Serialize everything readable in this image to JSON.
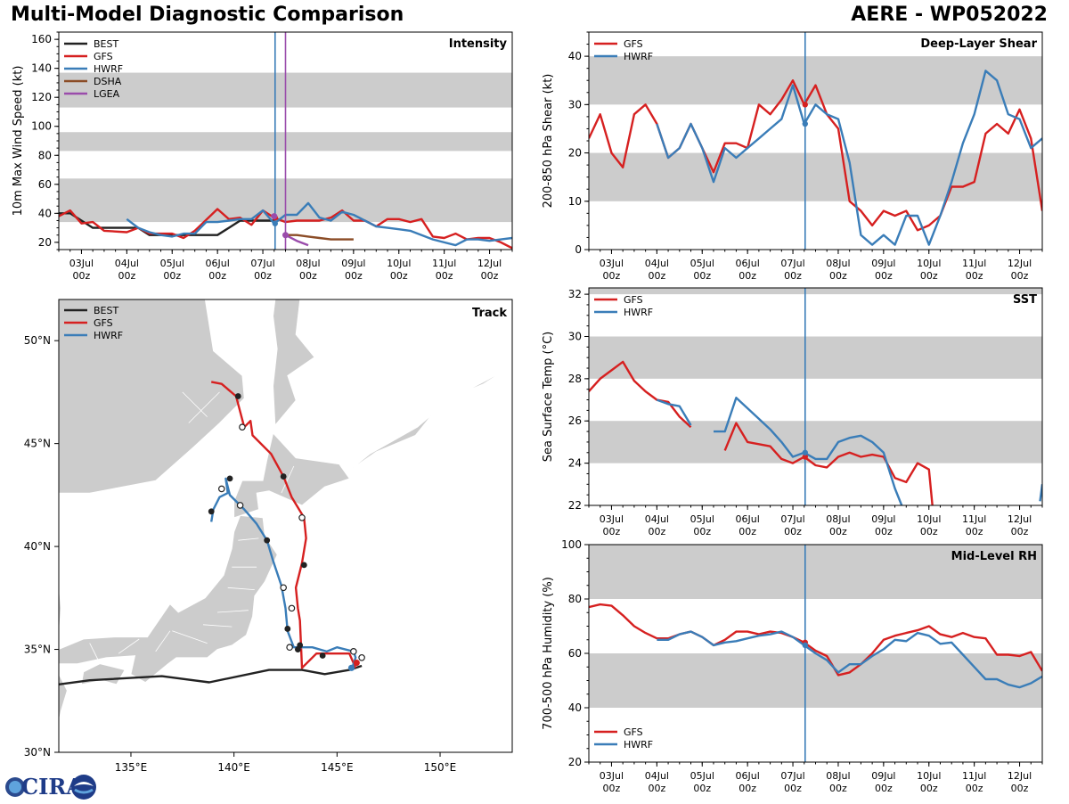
{
  "header": {
    "title": "Multi-Model Diagnostic Comparison",
    "storm": "AERE - WP052022"
  },
  "logo": {
    "text": "CIRA"
  },
  "colors": {
    "BEST": "#222222",
    "GFS": "#d62020",
    "HWRF": "#3a7db8",
    "DSHA": "#8b4c26",
    "LGEA": "#9a4cab",
    "band": "#cccccc",
    "land": "#cccccc",
    "current_line": "#3a7db8",
    "lgea_line": "#9a4cab"
  },
  "time_axis": {
    "labels": [
      "03Jul\n00z",
      "04Jul\n00z",
      "05Jul\n00z",
      "06Jul\n00z",
      "07Jul\n00z",
      "08Jul\n00z",
      "09Jul\n00z",
      "10Jul\n00z",
      "11Jul\n00z",
      "12Jul\n00z"
    ],
    "tick_days": [
      3,
      4,
      5,
      6,
      7,
      8,
      9,
      10,
      11,
      12
    ],
    "xlim": [
      2.5,
      12.5
    ],
    "current_time": 7.27
  },
  "chart_data": [
    {
      "id": "intensity",
      "type": "line",
      "title": "Intensity",
      "ylabel": "10m Max Wind Speed (kt)",
      "ylim": [
        15,
        165
      ],
      "yticks": [
        20,
        40,
        60,
        80,
        100,
        120,
        140,
        160
      ],
      "bands": [
        [
          34,
          64
        ],
        [
          83,
          96
        ],
        [
          113,
          137
        ]
      ],
      "extra_vline": 7.5,
      "legend": [
        "BEST",
        "GFS",
        "HWRF",
        "DSHA",
        "LGEA"
      ],
      "series": [
        {
          "name": "BEST",
          "x": [
            2.5,
            2.75,
            3.0,
            3.25,
            3.5,
            4.0,
            4.25,
            4.5,
            5.0,
            5.5,
            6.0,
            6.25,
            6.5,
            7.0,
            7.25
          ],
          "y": [
            40,
            40,
            35,
            30,
            30,
            30,
            30,
            25,
            25,
            25,
            25,
            30,
            35,
            35,
            35
          ]
        },
        {
          "name": "GFS",
          "x": [
            2.5,
            2.75,
            3.0,
            3.25,
            3.5,
            4.0,
            4.25,
            4.5,
            5.0,
            5.25,
            5.5,
            6.0,
            6.25,
            6.5,
            6.75,
            7.0,
            7.25,
            7.5,
            7.75,
            8.0,
            8.25,
            8.5,
            8.75,
            9.0,
            9.25,
            9.5,
            9.75,
            10.0,
            10.25,
            10.5,
            10.75,
            11.0,
            11.25,
            11.5,
            11.75,
            12.0,
            12.25,
            12.5
          ],
          "y": [
            38,
            42,
            33,
            34,
            28,
            27,
            30,
            26,
            26,
            23,
            28,
            43,
            36,
            37,
            32,
            42,
            37,
            34,
            35,
            35,
            35,
            37,
            42,
            35,
            35,
            31,
            36,
            36,
            34,
            36,
            24,
            23,
            26,
            22,
            23,
            23,
            20,
            16
          ]
        },
        {
          "name": "HWRF",
          "x": [
            4.0,
            4.25,
            4.5,
            4.75,
            5.0,
            5.25,
            5.5,
            5.75,
            6.0,
            6.25,
            6.5,
            6.75,
            7.0,
            7.25,
            7.5,
            7.75,
            8.0,
            8.25,
            8.5,
            8.75,
            9.0,
            9.25,
            9.5,
            9.75,
            10.0,
            10.25,
            10.5,
            10.75,
            11.0,
            11.25,
            11.5,
            11.75,
            12.0,
            12.25,
            12.5
          ],
          "y": [
            36,
            30,
            27,
            25,
            24,
            26,
            26,
            34,
            34,
            35,
            36,
            36,
            42,
            33,
            39,
            39,
            47,
            37,
            35,
            41,
            39,
            35,
            31,
            30,
            29,
            28,
            25,
            22,
            20,
            18,
            22,
            22,
            21,
            22,
            23
          ]
        },
        {
          "name": "DSHA",
          "x": [
            7.5,
            7.75,
            8.0,
            8.25,
            8.5,
            8.75,
            9.0
          ],
          "y": [
            25,
            25,
            24,
            23,
            22,
            22,
            22
          ]
        },
        {
          "name": "LGEA",
          "x": [
            7.5,
            7.75,
            8.0
          ],
          "y": [
            25,
            21,
            18
          ]
        }
      ]
    },
    {
      "id": "shear",
      "type": "line",
      "title": "Deep-Layer Shear",
      "ylabel": "200-850 hPa Shear (kt)",
      "ylim": [
        0,
        45
      ],
      "yticks": [
        0,
        10,
        20,
        30,
        40
      ],
      "bands": [
        [
          10,
          20
        ],
        [
          30,
          40
        ]
      ],
      "legend": [
        "GFS",
        "HWRF"
      ],
      "series": [
        {
          "name": "GFS",
          "x": [
            2.5,
            2.75,
            3.0,
            3.25,
            3.5,
            3.75,
            4.0,
            4.25,
            4.5,
            4.75,
            5.0,
            5.25,
            5.5,
            5.75,
            6.0,
            6.25,
            6.5,
            6.75,
            7.0,
            7.25,
            7.5,
            7.75,
            8.0,
            8.25,
            8.5,
            8.75,
            9.0,
            9.25,
            9.5,
            9.75,
            10.0,
            10.25,
            10.5,
            10.75,
            11.0,
            11.25,
            11.5,
            11.75,
            12.0,
            12.25,
            12.5
          ],
          "y": [
            23,
            28,
            20,
            17,
            28,
            30,
            26,
            19,
            21,
            26,
            21,
            16,
            22,
            22,
            21,
            30,
            28,
            31,
            35,
            30,
            34,
            28,
            25,
            10,
            8,
            5,
            8,
            7,
            8,
            4,
            5,
            7,
            13,
            13,
            14,
            24,
            26,
            24,
            29,
            23,
            8
          ]
        },
        {
          "name": "HWRF",
          "x": [
            4.0,
            4.25,
            4.5,
            4.75,
            5.0,
            5.25,
            5.5,
            5.75,
            6.0,
            6.25,
            6.5,
            6.75,
            7.0,
            7.25,
            7.5,
            7.75,
            8.0,
            8.25,
            8.5,
            8.75,
            9.0,
            9.25,
            9.5,
            9.75,
            10.0,
            10.25,
            10.5,
            10.75,
            11.0,
            11.25,
            11.5,
            11.75,
            12.0,
            12.25,
            12.5
          ],
          "y": [
            26,
            19,
            21,
            26,
            21,
            14,
            21,
            19,
            21,
            23,
            25,
            27,
            34,
            26,
            30,
            28,
            27,
            18,
            3,
            1,
            3,
            1,
            7,
            7,
            1,
            7,
            14,
            22,
            28,
            37,
            35,
            28,
            27,
            21,
            23
          ]
        }
      ]
    },
    {
      "id": "sst",
      "type": "line",
      "title": "SST",
      "ylabel": "Sea Surface Temp (°C)",
      "ylim": [
        22,
        32.3
      ],
      "yticks": [
        22,
        24,
        26,
        28,
        30,
        32
      ],
      "bands": [
        [
          24,
          26
        ],
        [
          28,
          30
        ],
        [
          32,
          34
        ]
      ],
      "legend": [
        "GFS",
        "HWRF"
      ],
      "series": [
        {
          "name": "GFS",
          "x": [
            2.5,
            2.75,
            3.0,
            3.25,
            3.5,
            3.75,
            4.0,
            4.25,
            4.5,
            4.75,
            null,
            5.5,
            5.75,
            6.0,
            6.25,
            6.5,
            6.75,
            7.0,
            7.25,
            7.5,
            7.75,
            8.0,
            8.25,
            8.5,
            8.75,
            9.0,
            9.25,
            9.5,
            9.75,
            10.0,
            10.1
          ],
          "y": [
            27.4,
            28.0,
            28.4,
            28.8,
            27.9,
            27.4,
            27.0,
            26.9,
            26.2,
            25.7,
            null,
            24.6,
            25.9,
            25.0,
            24.9,
            24.8,
            24.2,
            24.0,
            24.3,
            23.9,
            23.8,
            24.3,
            24.5,
            24.3,
            24.4,
            24.3,
            23.3,
            23.1,
            24.0,
            23.7,
            21.5
          ]
        },
        {
          "name": "HWRF",
          "x": [
            4.0,
            4.25,
            4.5,
            4.75,
            null,
            5.25,
            5.5,
            5.75,
            6.0,
            6.25,
            6.5,
            6.75,
            7.0,
            7.25,
            7.5,
            7.75,
            8.0,
            8.25,
            8.5,
            8.75,
            9.0,
            9.25,
            9.4,
            null,
            12.45,
            12.5
          ],
          "y": [
            27.0,
            26.8,
            26.7,
            25.8,
            null,
            25.5,
            25.5,
            27.1,
            26.6,
            26.1,
            25.6,
            25.0,
            24.3,
            24.5,
            24.2,
            24.2,
            25.0,
            25.2,
            25.3,
            25.0,
            24.5,
            22.8,
            22.0,
            null,
            22.2,
            23.0
          ]
        }
      ]
    },
    {
      "id": "rh",
      "type": "line",
      "title": "Mid-Level RH",
      "ylabel": "700-500 hPa Humidity (%)",
      "ylim": [
        20,
        100
      ],
      "yticks": [
        20,
        40,
        60,
        80,
        100
      ],
      "bands": [
        [
          40,
          60
        ],
        [
          80,
          100
        ]
      ],
      "legend": [
        "GFS",
        "HWRF"
      ],
      "series": [
        {
          "name": "GFS",
          "x": [
            2.5,
            2.75,
            3.0,
            3.25,
            3.5,
            3.75,
            4.0,
            4.25,
            4.5,
            4.75,
            5.0,
            5.25,
            5.5,
            5.75,
            6.0,
            6.25,
            6.5,
            6.75,
            7.0,
            7.25,
            7.5,
            7.75,
            8.0,
            8.25,
            8.5,
            8.75,
            9.0,
            9.25,
            9.5,
            9.75,
            10.0,
            10.25,
            10.5,
            10.75,
            11.0,
            11.25,
            11.5,
            11.75,
            12.0,
            12.25,
            12.5
          ],
          "y": [
            77,
            78,
            77.5,
            74,
            70,
            67.5,
            65.5,
            65.5,
            67,
            68,
            66,
            63,
            65,
            68,
            68,
            67,
            68,
            67.5,
            66,
            64,
            61,
            59,
            52,
            53,
            56,
            60,
            65,
            66.5,
            67.5,
            68.5,
            70,
            67,
            66,
            67.5,
            66,
            65.5,
            59.5,
            59.5,
            59,
            60.5,
            53.5
          ]
        },
        {
          "name": "HWRF",
          "x": [
            4.0,
            4.25,
            4.5,
            4.75,
            5.0,
            5.25,
            5.5,
            5.75,
            6.0,
            6.25,
            6.5,
            6.75,
            7.0,
            7.25,
            7.5,
            7.75,
            8.0,
            8.25,
            8.5,
            8.75,
            9.0,
            9.25,
            9.5,
            9.75,
            10.0,
            10.25,
            10.5,
            10.75,
            11.0,
            11.25,
            11.5,
            11.75,
            12.0,
            12.25,
            12.5
          ],
          "y": [
            65,
            65,
            67,
            68,
            66,
            63,
            64,
            64.5,
            65.5,
            66.5,
            67,
            68,
            66,
            63,
            60,
            57.5,
            53,
            56,
            56,
            59,
            61.5,
            65,
            64.5,
            67.5,
            66.5,
            63.5,
            64,
            59.5,
            55,
            50.5,
            50.5,
            48.5,
            47.5,
            49,
            51.5
          ]
        }
      ]
    },
    {
      "id": "track",
      "type": "scatter",
      "title": "Track",
      "xlim": [
        131.5,
        153.5
      ],
      "ylim": [
        30,
        52
      ],
      "xticks": [
        135,
        140,
        145,
        150
      ],
      "xtick_labels": [
        "135°E",
        "140°E",
        "145°E",
        "150°E"
      ],
      "yticks": [
        30,
        35,
        40,
        45,
        50
      ],
      "ytick_labels": [
        "30°N",
        "35°N",
        "40°N",
        "45°N",
        "50°N"
      ],
      "legend": [
        "BEST",
        "GFS",
        "HWRF"
      ],
      "series": [
        {
          "name": "BEST",
          "lon": [
            131.5,
            133.0,
            136.5,
            138.8,
            141.7,
            143.3,
            144.4,
            145.6,
            146.2
          ],
          "lat": [
            33.3,
            33.5,
            33.7,
            33.4,
            34.0,
            34.0,
            33.8,
            34.0,
            34.2
          ]
        },
        {
          "name": "GFS",
          "lon": [
            145.9,
            145.6,
            144.0,
            143.3,
            143.2,
            143.1,
            143.0,
            143.3,
            143.5,
            143.4,
            142.8,
            142.4,
            141.8,
            140.9,
            140.8,
            140.5,
            140.1,
            139.4,
            138.9
          ],
          "lat": [
            34.1,
            34.8,
            34.8,
            34.1,
            36.4,
            37.0,
            38.0,
            39.2,
            40.4,
            41.4,
            42.4,
            43.4,
            44.5,
            45.4,
            46.1,
            45.8,
            47.3,
            47.9,
            48.0
          ],
          "filled": [
            [
              143.1,
              35.0
            ],
            [
              143.2,
              35.2
            ],
            [
              143.4,
              39.1
            ],
            [
              142.4,
              43.4
            ],
            [
              140.2,
              47.3
            ]
          ],
          "open": [
            [
              143.3,
              41.4
            ],
            [
              140.4,
              45.8
            ]
          ]
        },
        {
          "name": "HWRF",
          "lon": [
            145.7,
            145.9,
            145.8,
            145.0,
            144.5,
            143.8,
            142.9,
            142.6,
            142.5,
            142.3,
            141.9,
            141.6,
            141.1,
            140.5,
            139.8,
            139.6,
            139.7,
            139.3,
            139.0,
            138.9
          ],
          "lat": [
            34.0,
            34.6,
            34.9,
            35.1,
            34.9,
            35.1,
            35.1,
            35.9,
            37.0,
            38.1,
            39.3,
            40.3,
            41.1,
            41.8,
            42.5,
            43.3,
            42.6,
            42.4,
            41.8,
            41.2
          ],
          "filled": [
            [
              142.6,
              36.0
            ],
            [
              141.6,
              40.3
            ],
            [
              139.8,
              43.3
            ],
            [
              138.9,
              41.7
            ],
            [
              144.3,
              34.7
            ]
          ],
          "open": [
            [
              142.7,
              35.1
            ],
            [
              142.8,
              37.0
            ],
            [
              142.4,
              38.0
            ],
            [
              140.3,
              42.0
            ],
            [
              139.4,
              42.8
            ],
            [
              145.8,
              34.9
            ],
            [
              146.2,
              34.6
            ]
          ]
        }
      ]
    }
  ]
}
